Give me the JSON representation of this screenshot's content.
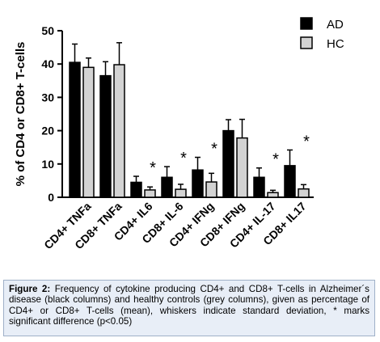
{
  "chart_data": {
    "type": "bar",
    "ylabel": "% of CD4 or CD8+ T-cells",
    "ylim": [
      0,
      50
    ],
    "yticks": [
      0,
      10,
      20,
      30,
      40,
      50
    ],
    "categories": [
      "CD4+ TNFa",
      "CD8+ TNFa",
      "CD4+ IL6",
      "CD8+ IL-6",
      "CD4+ IFNg",
      "CD8+ IFNg",
      "CD4+ IL-17",
      "CD8+ IL17"
    ],
    "series": [
      {
        "name": "AD",
        "color": "#000000",
        "values": [
          40.5,
          36.5,
          4.5,
          6.0,
          8.2,
          20.0,
          6.0,
          9.5
        ],
        "errors": [
          5.5,
          4.2,
          1.8,
          3.2,
          3.8,
          3.3,
          2.8,
          4.7
        ]
      },
      {
        "name": "HC",
        "color": "#d3d3d3",
        "values": [
          39.0,
          39.8,
          2.2,
          2.4,
          4.6,
          17.8,
          1.4,
          2.5
        ],
        "errors": [
          2.8,
          6.6,
          0.9,
          1.5,
          2.6,
          5.6,
          0.7,
          1.3
        ]
      }
    ],
    "significance": [
      false,
      false,
      true,
      true,
      true,
      false,
      true,
      true
    ],
    "significance_marker": "*",
    "legend_position": "top-right",
    "grid": false
  },
  "caption": {
    "label": "Figure 2:",
    "text": " Frequency of cytokine producing CD4+ and CD8+ T-cells in Alzheimer´s disease (black columns) and healthy controls (grey columns), given as percentage of CD4+ or CD8+ T-cells (mean), whiskers indicate standard deviation, * marks significant difference (p<0.05)"
  }
}
